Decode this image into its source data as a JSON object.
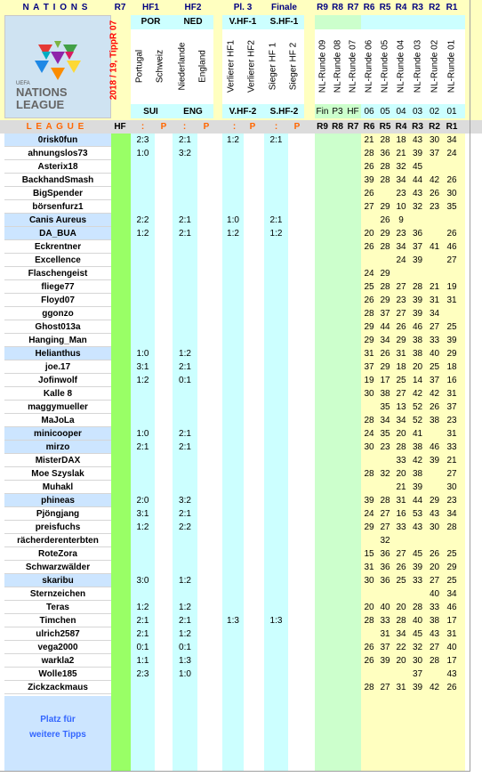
{
  "colors": {
    "header_bg": "#ffffc0",
    "yellow": "#ffffc0",
    "cyan": "#ccffff",
    "green": "#99ff66",
    "lightgreen": "#ccffcc",
    "blue_row": "#cce5ff",
    "grey": "#dcdcdc",
    "red": "#ff0000",
    "navy": "#000080",
    "blue_text": "#3366ff"
  },
  "header": {
    "nations": "N A T I O N S",
    "r7": "R7",
    "hf1": "HF1",
    "hf2": "HF2",
    "pl3": "Pl. 3",
    "finale": "Finale",
    "rounds": [
      "R9",
      "R8",
      "R7",
      "R6",
      "R5",
      "R4",
      "R3",
      "R2",
      "R1"
    ],
    "por": "POR",
    "ned": "NED",
    "vhf1": "V.HF-1",
    "shf1": "S.HF-1",
    "sui": "SUI",
    "eng": "ENG",
    "vhf2": "V.HF-2",
    "shf2": "S.HF-2",
    "fin_row": [
      "Fin",
      "P3",
      "HF",
      "06",
      "05",
      "04",
      "03",
      "02",
      "01"
    ],
    "vertical_team": [
      "Portugal",
      "Schweiz",
      "Niederlande",
      "England"
    ],
    "vertical_final": [
      "Verlierer HF1",
      "Verlierer HF2",
      "Sieger HF 1",
      "Sieger HF 2"
    ],
    "vertical_rounds": [
      "NL-Runde 09",
      "NL-Runde 08",
      "NL-Runde 07",
      "NL-Runde 06",
      "NL-Runde 05",
      "NL-Runde 04",
      "NL-Runde 03",
      "NL-Runde 02",
      "NL-Runde 01"
    ],
    "season": "2018 / 19,  TippR  07",
    "league": "L E A G U E",
    "hf": "HF",
    "colon": ":",
    "p": "P",
    "logo_small": "UEFA",
    "logo_big1": "NATIONS",
    "logo_big2": "LEAGUE"
  },
  "players": [
    {
      "name": "0risk0fun",
      "hf1": "2:3",
      "hf2": "2:1",
      "pl3": "1:2",
      "fin": "2:1",
      "r": [
        "",
        "",
        "",
        "21",
        "28",
        "18",
        "43",
        "30",
        "34"
      ]
    },
    {
      "name": "ahnungslos73",
      "hf1": "1:0",
      "hf2": "3:2",
      "pl3": "",
      "fin": "",
      "r": [
        "",
        "",
        "",
        "28",
        "36",
        "21",
        "39",
        "37",
        "24"
      ]
    },
    {
      "name": "Asterix18",
      "hf1": "",
      "hf2": "",
      "pl3": "",
      "fin": "",
      "r": [
        "",
        "",
        "",
        "26",
        "28",
        "32",
        "45",
        "",
        ""
      ]
    },
    {
      "name": "BackhandSmash",
      "hf1": "",
      "hf2": "",
      "pl3": "",
      "fin": "",
      "r": [
        "",
        "",
        "",
        "39",
        "28",
        "34",
        "44",
        "42",
        "26"
      ]
    },
    {
      "name": "BigSpender",
      "hf1": "",
      "hf2": "",
      "pl3": "",
      "fin": "",
      "r": [
        "",
        "",
        "",
        "26",
        "",
        "23",
        "43",
        "26",
        "30"
      ]
    },
    {
      "name": "börsenfurz1",
      "hf1": "",
      "hf2": "",
      "pl3": "",
      "fin": "",
      "r": [
        "",
        "",
        "",
        "27",
        "29",
        "10",
        "32",
        "23",
        "35"
      ]
    },
    {
      "name": "Canis Aureus",
      "hf1": "2:2",
      "hf2": "2:1",
      "pl3": "1:0",
      "fin": "2:1",
      "r": [
        "",
        "",
        "",
        "",
        "26",
        "9",
        "",
        "",
        ""
      ]
    },
    {
      "name": "DA_BUA",
      "hf1": "1:2",
      "hf2": "2:1",
      "pl3": "1:2",
      "fin": "1:2",
      "r": [
        "",
        "",
        "",
        "20",
        "29",
        "23",
        "36",
        "",
        "26"
      ]
    },
    {
      "name": "Eckrentner",
      "hf1": "",
      "hf2": "",
      "pl3": "",
      "fin": "",
      "r": [
        "",
        "",
        "",
        "26",
        "28",
        "34",
        "37",
        "41",
        "46"
      ]
    },
    {
      "name": "Excellence",
      "hf1": "",
      "hf2": "",
      "pl3": "",
      "fin": "",
      "r": [
        "",
        "",
        "",
        "",
        "",
        "24",
        "39",
        "",
        "27"
      ]
    },
    {
      "name": "Flaschengeist",
      "hf1": "",
      "hf2": "",
      "pl3": "",
      "fin": "",
      "r": [
        "",
        "",
        "",
        "24",
        "29",
        "",
        "",
        "",
        ""
      ]
    },
    {
      "name": "fliege77",
      "hf1": "",
      "hf2": "",
      "pl3": "",
      "fin": "",
      "r": [
        "",
        "",
        "",
        "25",
        "28",
        "27",
        "28",
        "21",
        "19"
      ]
    },
    {
      "name": "Floyd07",
      "hf1": "",
      "hf2": "",
      "pl3": "",
      "fin": "",
      "r": [
        "",
        "",
        "",
        "26",
        "29",
        "23",
        "39",
        "31",
        "31"
      ]
    },
    {
      "name": "ggonzo",
      "hf1": "",
      "hf2": "",
      "pl3": "",
      "fin": "",
      "r": [
        "",
        "",
        "",
        "28",
        "37",
        "27",
        "39",
        "34",
        ""
      ]
    },
    {
      "name": "Ghost013a",
      "hf1": "",
      "hf2": "",
      "pl3": "",
      "fin": "",
      "r": [
        "",
        "",
        "",
        "29",
        "44",
        "26",
        "46",
        "27",
        "25"
      ]
    },
    {
      "name": "Hanging_Man",
      "hf1": "",
      "hf2": "",
      "pl3": "",
      "fin": "",
      "r": [
        "",
        "",
        "",
        "29",
        "34",
        "29",
        "38",
        "33",
        "39"
      ]
    },
    {
      "name": "Helianthus",
      "hf1": "1:0",
      "hf2": "1:2",
      "pl3": "",
      "fin": "",
      "r": [
        "",
        "",
        "",
        "31",
        "26",
        "31",
        "38",
        "40",
        "29"
      ]
    },
    {
      "name": "joe.17",
      "hf1": "3:1",
      "hf2": "2:1",
      "pl3": "",
      "fin": "",
      "r": [
        "",
        "",
        "",
        "37",
        "29",
        "18",
        "20",
        "25",
        "18"
      ]
    },
    {
      "name": "Jofinwolf",
      "hf1": "1:2",
      "hf2": "0:1",
      "pl3": "",
      "fin": "",
      "r": [
        "",
        "",
        "",
        "19",
        "17",
        "25",
        "14",
        "37",
        "16"
      ]
    },
    {
      "name": "Kalle 8",
      "hf1": "",
      "hf2": "",
      "pl3": "",
      "fin": "",
      "r": [
        "",
        "",
        "",
        "30",
        "38",
        "27",
        "42",
        "42",
        "31"
      ]
    },
    {
      "name": "maggymueller",
      "hf1": "",
      "hf2": "",
      "pl3": "",
      "fin": "",
      "r": [
        "",
        "",
        "",
        "",
        "35",
        "13",
        "52",
        "26",
        "37"
      ]
    },
    {
      "name": "MaJoLa",
      "hf1": "",
      "hf2": "",
      "pl3": "",
      "fin": "",
      "r": [
        "",
        "",
        "",
        "28",
        "34",
        "34",
        "52",
        "38",
        "23"
      ]
    },
    {
      "name": "minicooper",
      "hf1": "1:0",
      "hf2": "2:1",
      "pl3": "",
      "fin": "",
      "r": [
        "",
        "",
        "",
        "24",
        "35",
        "20",
        "41",
        "",
        "31"
      ]
    },
    {
      "name": "mirzo",
      "hf1": "2:1",
      "hf2": "2:1",
      "pl3": "",
      "fin": "",
      "r": [
        "",
        "",
        "",
        "30",
        "23",
        "28",
        "38",
        "46",
        "33"
      ]
    },
    {
      "name": "MisterDAX",
      "hf1": "",
      "hf2": "",
      "pl3": "",
      "fin": "",
      "r": [
        "",
        "",
        "",
        "",
        "",
        "33",
        "42",
        "39",
        "21"
      ]
    },
    {
      "name": "Moe Szyslak",
      "hf1": "",
      "hf2": "",
      "pl3": "",
      "fin": "",
      "r": [
        "",
        "",
        "",
        "28",
        "32",
        "20",
        "38",
        "",
        "27"
      ]
    },
    {
      "name": "Muhakl",
      "hf1": "",
      "hf2": "",
      "pl3": "",
      "fin": "",
      "r": [
        "",
        "",
        "",
        "",
        "",
        "21",
        "39",
        "",
        "30"
      ]
    },
    {
      "name": "phineas",
      "hf1": "2:0",
      "hf2": "3:2",
      "pl3": "",
      "fin": "",
      "r": [
        "",
        "",
        "",
        "39",
        "28",
        "31",
        "44",
        "29",
        "23"
      ]
    },
    {
      "name": "Pjöngjang",
      "hf1": "3:1",
      "hf2": "2:1",
      "pl3": "",
      "fin": "",
      "r": [
        "",
        "",
        "",
        "24",
        "27",
        "16",
        "53",
        "43",
        "34"
      ]
    },
    {
      "name": "preisfuchs",
      "hf1": "1:2",
      "hf2": "2:2",
      "pl3": "",
      "fin": "",
      "r": [
        "",
        "",
        "",
        "29",
        "27",
        "33",
        "43",
        "30",
        "28"
      ]
    },
    {
      "name": "rächerderenterbten",
      "hf1": "",
      "hf2": "",
      "pl3": "",
      "fin": "",
      "r": [
        "",
        "",
        "",
        "",
        "32",
        "",
        "",
        "",
        ""
      ]
    },
    {
      "name": "RoteZora",
      "hf1": "",
      "hf2": "",
      "pl3": "",
      "fin": "",
      "r": [
        "",
        "",
        "",
        "15",
        "36",
        "27",
        "45",
        "26",
        "25"
      ]
    },
    {
      "name": "Schwarzwälder",
      "hf1": "",
      "hf2": "",
      "pl3": "",
      "fin": "",
      "r": [
        "",
        "",
        "",
        "31",
        "36",
        "26",
        "39",
        "20",
        "29"
      ]
    },
    {
      "name": "skaribu",
      "hf1": "3:0",
      "hf2": "1:2",
      "pl3": "",
      "fin": "",
      "r": [
        "",
        "",
        "",
        "30",
        "36",
        "25",
        "33",
        "27",
        "25"
      ]
    },
    {
      "name": "Sternzeichen",
      "hf1": "",
      "hf2": "",
      "pl3": "",
      "fin": "",
      "r": [
        "",
        "",
        "",
        "",
        "",
        "",
        "",
        "40",
        "34"
      ]
    },
    {
      "name": "Teras",
      "hf1": "1:2",
      "hf2": "1:2",
      "pl3": "",
      "fin": "",
      "r": [
        "",
        "",
        "",
        "20",
        "40",
        "20",
        "28",
        "33",
        "46"
      ]
    },
    {
      "name": "Timchen",
      "hf1": "2:1",
      "hf2": "2:1",
      "pl3": "1:3",
      "fin": "1:3",
      "r": [
        "",
        "",
        "",
        "28",
        "33",
        "28",
        "40",
        "38",
        "17"
      ]
    },
    {
      "name": "ulrich2587",
      "hf1": "2:1",
      "hf2": "1:2",
      "pl3": "",
      "fin": "",
      "r": [
        "",
        "",
        "",
        "",
        "31",
        "34",
        "45",
        "43",
        "31"
      ]
    },
    {
      "name": "vega2000",
      "hf1": "0:1",
      "hf2": "0:1",
      "pl3": "",
      "fin": "",
      "r": [
        "",
        "",
        "",
        "26",
        "37",
        "22",
        "32",
        "27",
        "40"
      ]
    },
    {
      "name": "warkla2",
      "hf1": "1:1",
      "hf2": "1:3",
      "pl3": "",
      "fin": "",
      "r": [
        "",
        "",
        "",
        "26",
        "39",
        "20",
        "30",
        "28",
        "17"
      ]
    },
    {
      "name": "Wolle185",
      "hf1": "2:3",
      "hf2": "1:0",
      "pl3": "",
      "fin": "",
      "r": [
        "",
        "",
        "",
        "",
        "",
        "",
        "37",
        "",
        "43"
      ]
    },
    {
      "name": "Zickzackmaus",
      "hf1": "",
      "hf2": "",
      "pl3": "",
      "fin": "",
      "r": [
        "",
        "",
        "",
        "28",
        "27",
        "31",
        "39",
        "42",
        "26"
      ]
    }
  ],
  "footer": {
    "line1": "Platz für",
    "line2": "weitere Tipps"
  }
}
